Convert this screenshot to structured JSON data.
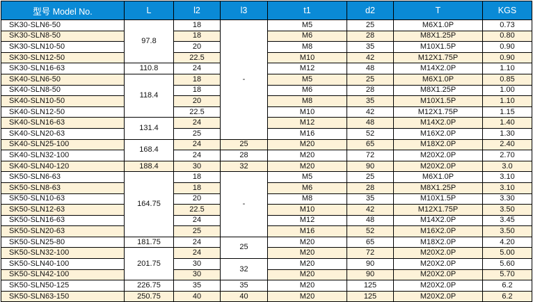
{
  "headers": [
    "型号 Model No.",
    "L",
    "l2",
    "l3",
    "t1",
    "d2",
    "T",
    "KGS"
  ],
  "colors": {
    "header_bg": "#0a8ad6",
    "stripe": "#fdf2d8"
  },
  "rows": [
    {
      "model": "SK30-SLN6-50",
      "l2": "18",
      "t1": "M5",
      "d2": "25",
      "T": "M6X1.0P",
      "kgs": "0.73"
    },
    {
      "model": "SK30-SLN8-50",
      "l2": "18",
      "t1": "M6",
      "d2": "28",
      "T": "M8X1.25P",
      "kgs": "0.80"
    },
    {
      "model": "SK30-SLN10-50",
      "l2": "20",
      "t1": "M8",
      "d2": "35",
      "T": "M10X1.5P",
      "kgs": "0.90"
    },
    {
      "model": "SK30-SLN12-50",
      "l2": "22.5",
      "t1": "M10",
      "d2": "42",
      "T": "M12X1.75P",
      "kgs": "0.90"
    },
    {
      "model": "SK30-SLN16-63",
      "l2": "24",
      "t1": "M12",
      "d2": "48",
      "T": "M14X2.0P",
      "kgs": "1.10"
    },
    {
      "model": "SK40-SLN6-50",
      "l2": "18",
      "t1": "M5",
      "d2": "25",
      "T": "M6X1.0P",
      "kgs": "0.85"
    },
    {
      "model": "SK40-SLN8-50",
      "l2": "18",
      "t1": "M6",
      "d2": "28",
      "T": "M8X1.25P",
      "kgs": "1.00"
    },
    {
      "model": "SK40-SLN10-50",
      "l2": "20",
      "t1": "M8",
      "d2": "35",
      "T": "M10X1.5P",
      "kgs": "1.10"
    },
    {
      "model": "SK40-SLN12-50",
      "l2": "22.5",
      "t1": "M10",
      "d2": "42",
      "T": "M12X1.75P",
      "kgs": "1.15"
    },
    {
      "model": "SK40-SLN16-63",
      "l2": "24",
      "t1": "M12",
      "d2": "48",
      "T": "M14X2.0P",
      "kgs": "1.40"
    },
    {
      "model": "SK40-SLN20-63",
      "l2": "25",
      "t1": "M16",
      "d2": "52",
      "T": "M16X2.0P",
      "kgs": "1.30"
    },
    {
      "model": "SK40-SLN25-100",
      "l2": "24",
      "t1": "M20",
      "d2": "65",
      "T": "M18X2.0P",
      "kgs": "2.40"
    },
    {
      "model": "SK40-SLN32-100",
      "l2": "24",
      "t1": "M20",
      "d2": "72",
      "T": "M20X2.0P",
      "kgs": "2.70"
    },
    {
      "model": "SK40-SLN40-120",
      "l2": "30",
      "t1": "M20",
      "d2": "90",
      "T": "M20X2.0P",
      "kgs": "3.0"
    },
    {
      "model": "SK50-SLN6-63",
      "l2": "18",
      "t1": "M5",
      "d2": "25",
      "T": "M6X1.0P",
      "kgs": "3.10"
    },
    {
      "model": "SK50-SLN8-63",
      "l2": "18",
      "t1": "M6",
      "d2": "28",
      "T": "M8X1.25P",
      "kgs": "3.10"
    },
    {
      "model": "SK50-SLN10-63",
      "l2": "20",
      "t1": "M8",
      "d2": "35",
      "T": "M10X1.5P",
      "kgs": "3.30"
    },
    {
      "model": "SK50-SLN12-63",
      "l2": "22.5",
      "t1": "M10",
      "d2": "42",
      "T": "M12X1.75P",
      "kgs": "3.50"
    },
    {
      "model": "SK50-SLN16-63",
      "l2": "24",
      "t1": "M12",
      "d2": "48",
      "T": "M14X2.0P",
      "kgs": "3.45"
    },
    {
      "model": "SK50-SLN20-63",
      "l2": "25",
      "t1": "M16",
      "d2": "52",
      "T": "M16X2.0P",
      "kgs": "3.50"
    },
    {
      "model": "SK50-SLN25-80",
      "l2": "24",
      "t1": "M20",
      "d2": "65",
      "T": "M18X2.0P",
      "kgs": "4.20"
    },
    {
      "model": "SK50-SLN32-100",
      "l2": "24",
      "t1": "M20",
      "d2": "72",
      "T": "M20X2.0P",
      "kgs": "5.00"
    },
    {
      "model": "SK50-SLN40-100",
      "l2": "30",
      "t1": "M20",
      "d2": "90",
      "T": "M20X2.0P",
      "kgs": "5.60"
    },
    {
      "model": "SK50-SLN42-100",
      "l2": "30",
      "t1": "M20",
      "d2": "90",
      "T": "M20X2.0P",
      "kgs": "5.70"
    },
    {
      "model": "SK50-SLN50-125",
      "l2": "35",
      "t1": "M20",
      "d2": "125",
      "T": "M20X2.0P",
      "kgs": "6.2"
    },
    {
      "model": "SK50-SLN63-150",
      "l2": "40",
      "t1": "M20",
      "d2": "125",
      "T": "M20X2.0P",
      "kgs": "6.2"
    }
  ],
  "L_groups": [
    {
      "value": "97.8",
      "span": 4
    },
    {
      "value": "110.8",
      "span": 1
    },
    {
      "value": "118.4",
      "span": 4
    },
    {
      "value": "131.4",
      "span": 2
    },
    {
      "value": "168.4",
      "span": 2
    },
    {
      "value": "188.4",
      "span": 1
    },
    {
      "value": "164.75",
      "span": 6
    },
    {
      "value": "181.75",
      "span": 1
    },
    {
      "value": "201.75",
      "span": 3
    },
    {
      "value": "226.75",
      "span": 1
    },
    {
      "value": "250.75",
      "span": 1
    }
  ],
  "l3_groups": [
    {
      "value": "-",
      "span": 11
    },
    {
      "value": "25",
      "span": 1
    },
    {
      "value": "28",
      "span": 1
    },
    {
      "value": "32",
      "span": 1
    },
    {
      "value": "-",
      "span": 6
    },
    {
      "value": "25",
      "span": 2
    },
    {
      "value": "32",
      "span": 2
    },
    {
      "value": "35",
      "span": 1
    },
    {
      "value": "40",
      "span": 1
    }
  ]
}
